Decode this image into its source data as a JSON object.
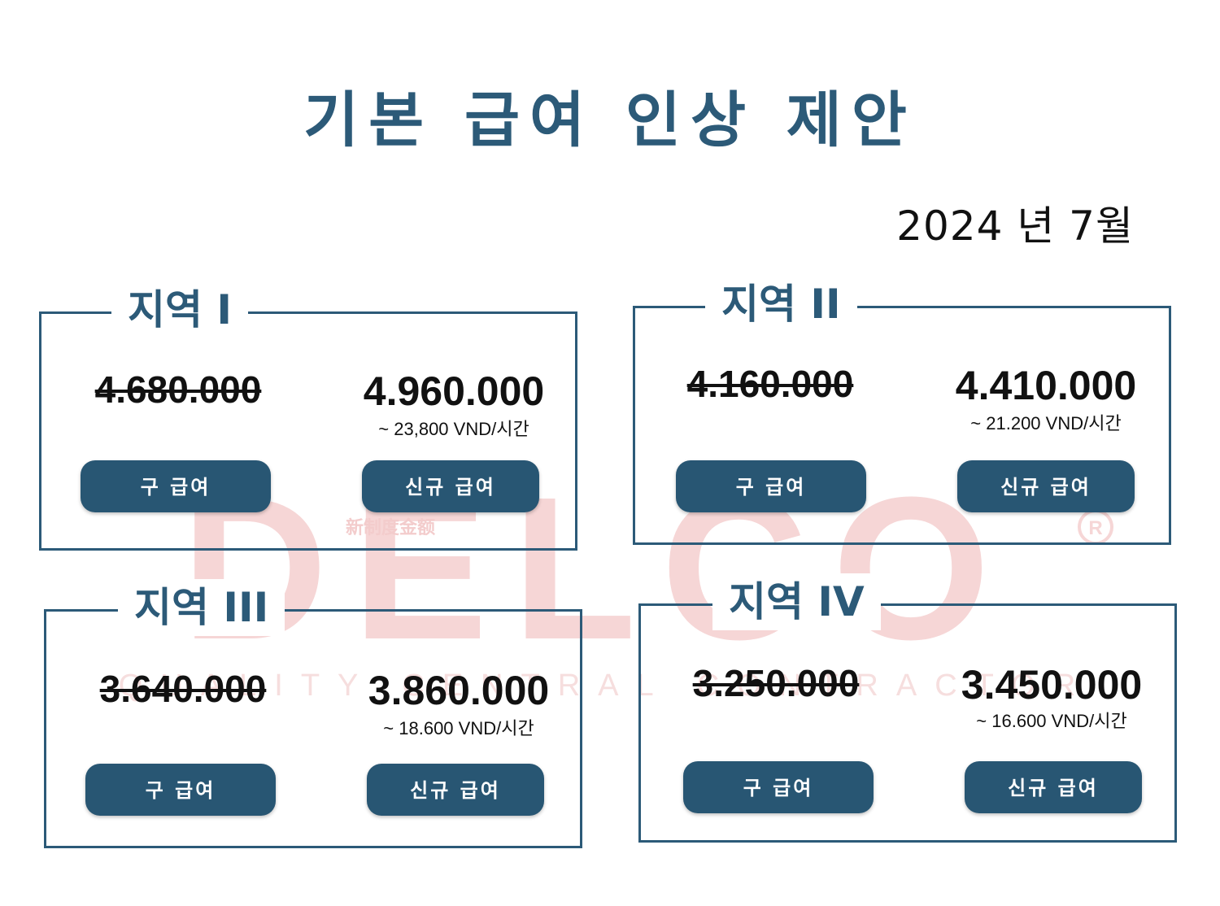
{
  "title": "기본 급여 인상 제안",
  "date": "2024 년 7월",
  "watermark": {
    "brand": "DELCO",
    "tagline": "QUALITY  CENTRAL  CONTRACTOR",
    "chinese": "新制度金额",
    "mark": "R",
    "color": "#f6d6d6"
  },
  "buttons": {
    "old_label": "구 급여",
    "new_label": "신규 급여"
  },
  "regions": [
    {
      "label": "지역 I",
      "old_salary": "4.680.000",
      "new_salary": "4.960.000",
      "hourly": "~ 23,800 VND/시간"
    },
    {
      "label": "지역 II",
      "old_salary": "4.160.000",
      "new_salary": "4.410.000",
      "hourly": "~ 21.200 VND/시간"
    },
    {
      "label": "지역 III",
      "old_salary": "3.640.000",
      "new_salary": "3.860.000",
      "hourly": "~ 18.600 VND/시간"
    },
    {
      "label": "지역 IV",
      "old_salary": "3.250.000",
      "new_salary": "3.450.000",
      "hourly": "~ 16.600 VND/시간"
    }
  ],
  "colors": {
    "primary": "#2c5a78",
    "button": "#285673",
    "text": "#111111"
  }
}
